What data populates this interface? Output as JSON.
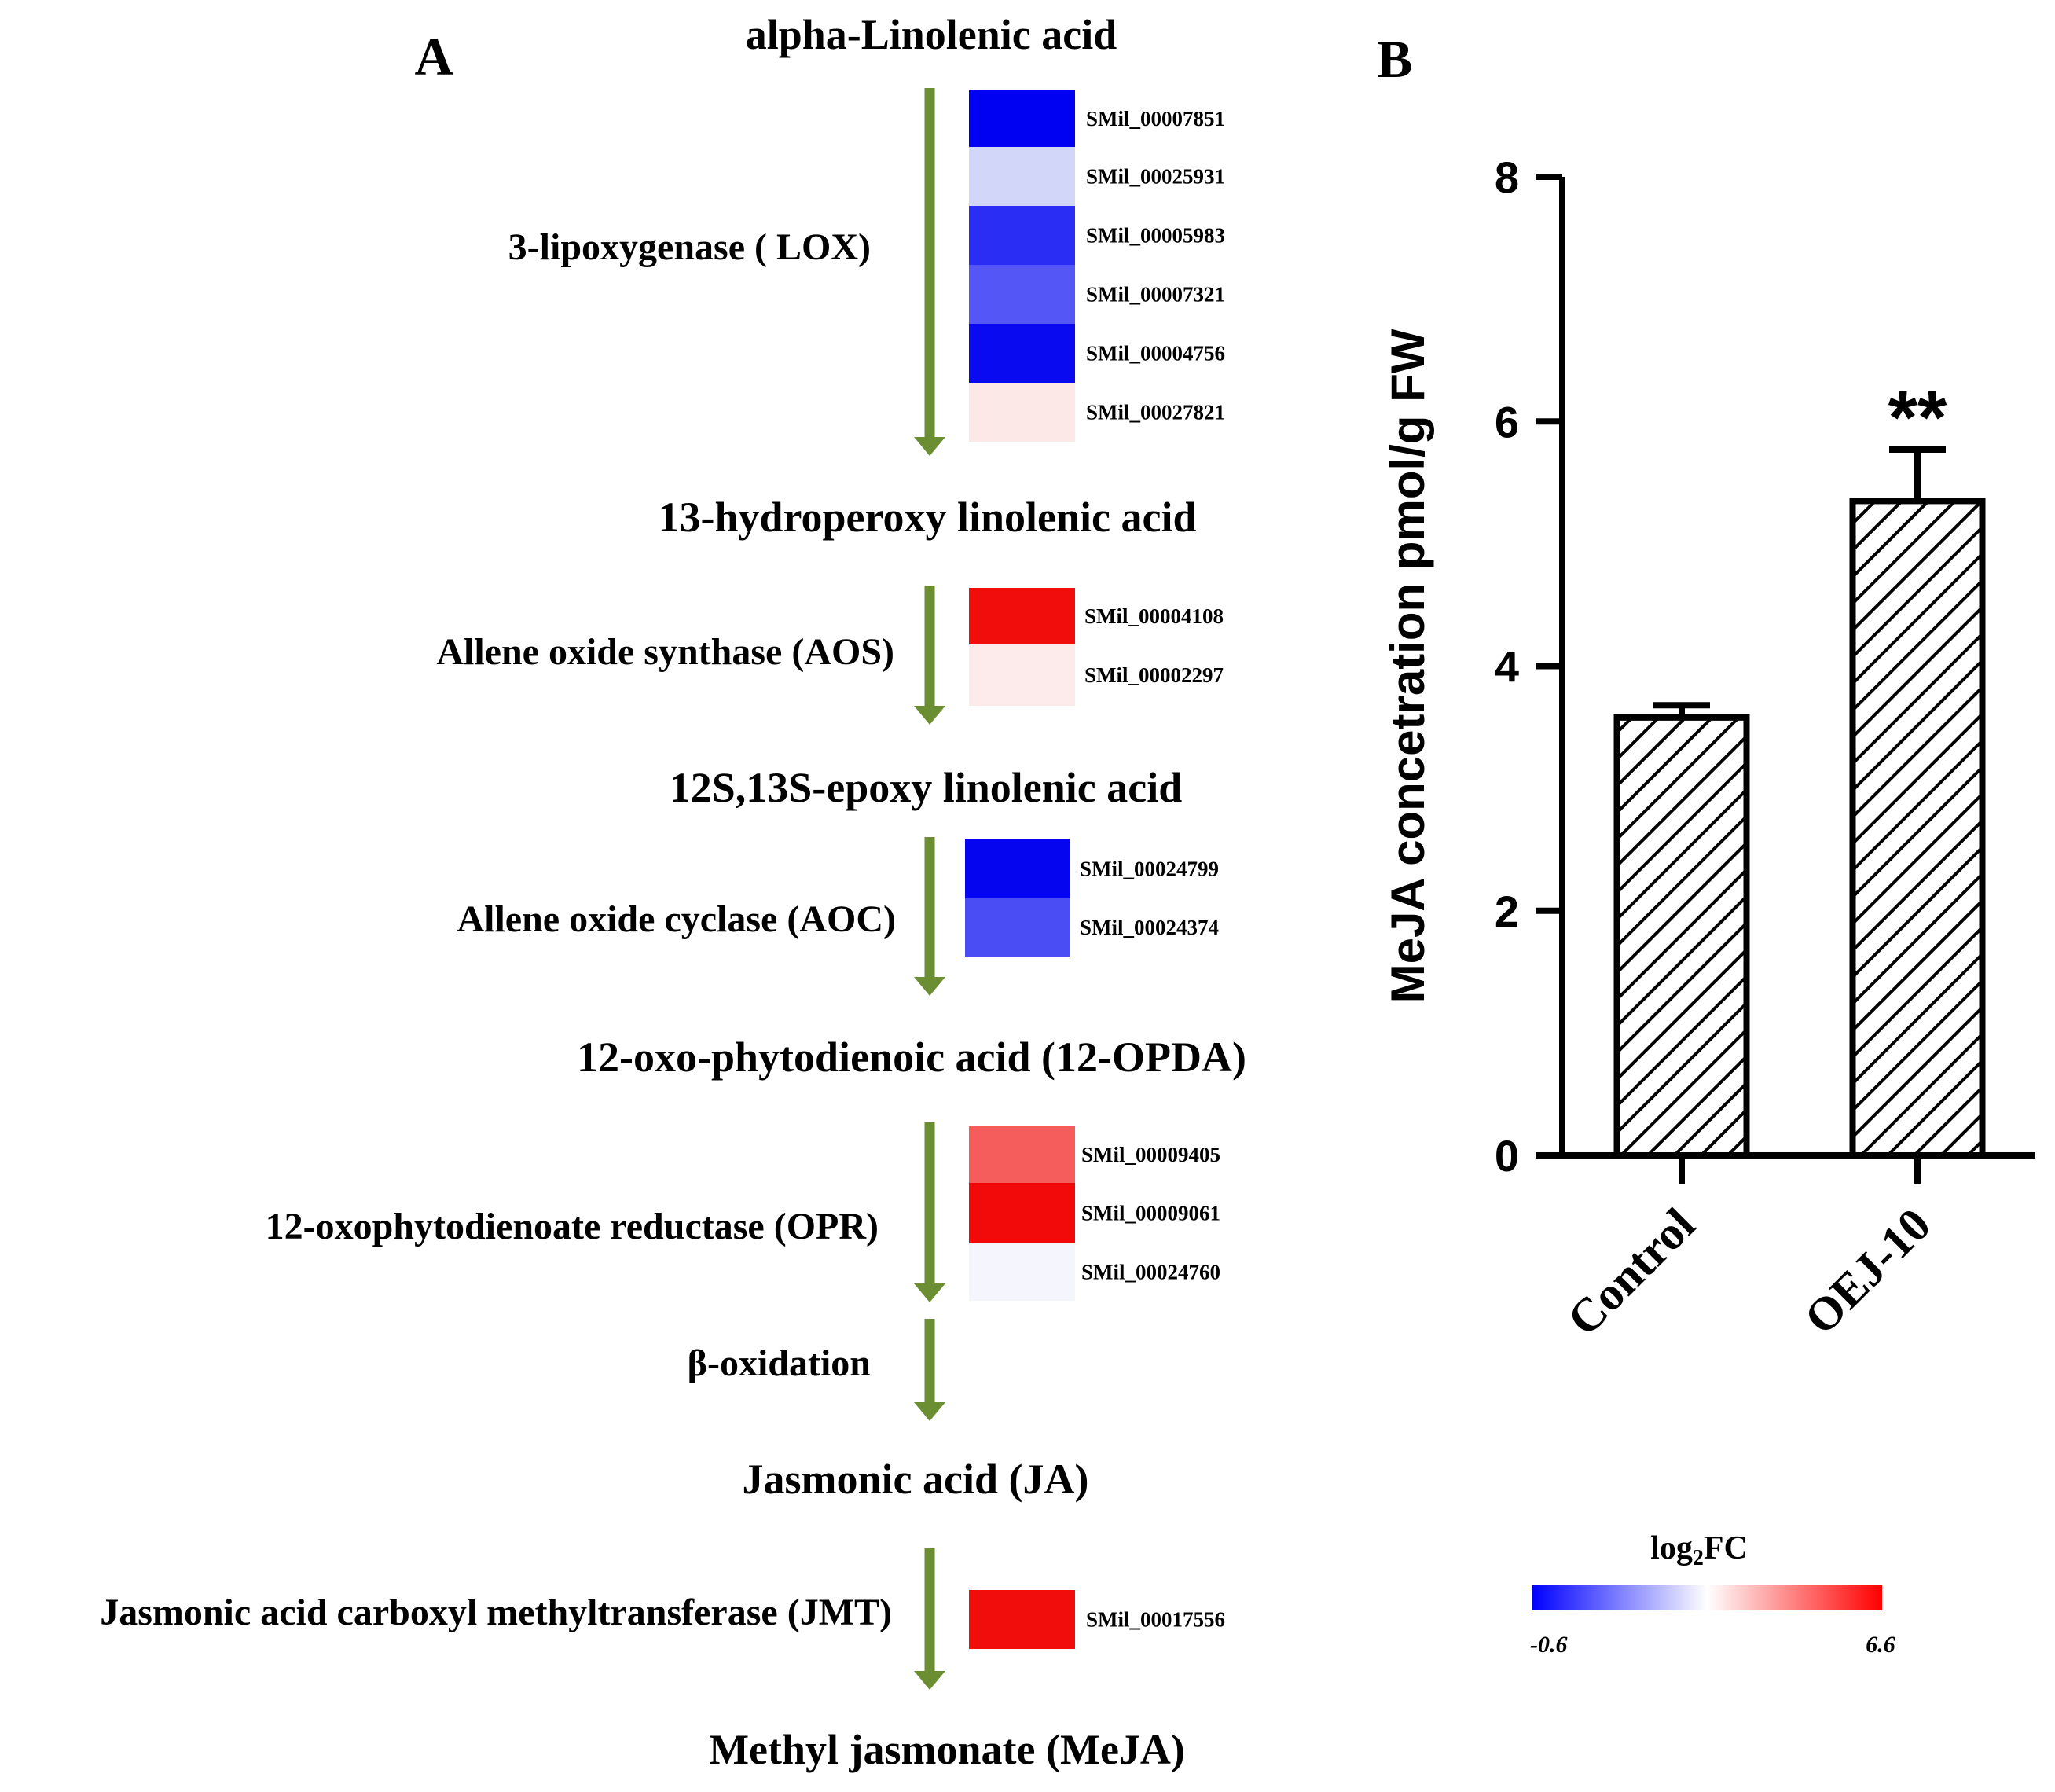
{
  "panel_a": {
    "label": "A",
    "metabolites": [
      "alpha-Linolenic acid",
      "13-hydroperoxy linolenic acid",
      "12S,13S-epoxy linolenic acid",
      "12-oxo-phytodienoic acid (12-OPDA)",
      "Jasmonic acid (JA)",
      "Methyl jasmonate (MeJA)"
    ],
    "enzymes": [
      {
        "name": "3-lipoxygenase ( LOX)",
        "genes": [
          {
            "id": "SMil_00007851",
            "color": "#0000F2"
          },
          {
            "id": "SMil_00025931",
            "color": "#D2D6F9"
          },
          {
            "id": "SMil_00005983",
            "color": "#2A2DF4"
          },
          {
            "id": "SMil_00007321",
            "color": "#5456F5"
          },
          {
            "id": "SMil_00004756",
            "color": "#0A0AF0"
          },
          {
            "id": "SMil_00027821",
            "color": "#FDE8E8"
          }
        ]
      },
      {
        "name": "Allene oxide synthase (AOS)",
        "genes": [
          {
            "id": "SMil_00004108",
            "color": "#F20D0D"
          },
          {
            "id": "SMil_00002297",
            "color": "#FDEAEA"
          }
        ]
      },
      {
        "name": "Allene oxide cyclase  (AOC)",
        "genes": [
          {
            "id": "SMil_00024799",
            "color": "#0505F0"
          },
          {
            "id": "SMil_00024374",
            "color": "#4A4CF4"
          }
        ]
      },
      {
        "name": "12-oxophytodienoate reductase  (OPR)",
        "genes": [
          {
            "id": "SMil_00009405",
            "color": "#F55C5C"
          },
          {
            "id": "SMil_00009061",
            "color": "#F20A0A"
          },
          {
            "id": "SMil_00024760",
            "color": "#F5F6FD"
          }
        ]
      },
      {
        "name": "β-oxidation",
        "genes": []
      },
      {
        "name": "Jasmonic acid carboxyl methyltransferase (JMT)",
        "genes": [
          {
            "id": "SMil_00017556",
            "color": "#F20D0D"
          }
        ]
      }
    ],
    "arrow_color": "#6B8E33",
    "legend": {
      "title": "log₂FC",
      "min_label": "-0.6",
      "max_label": "6.6",
      "colors": [
        "#0000FF",
        "#FFFFFF",
        "#FF0000"
      ]
    }
  },
  "chart_data": {
    "type": "bar",
    "panel_label": "B",
    "title": "",
    "xlabel": "",
    "ylabel": "MeJA concetration pmol/g FW",
    "ylim": [
      0,
      8
    ],
    "yticks": [
      "0",
      "2",
      "4",
      "6",
      "8"
    ],
    "categories": [
      "Control",
      "OEJ-10"
    ],
    "values": [
      3.58,
      5.35
    ],
    "errors": [
      0.1,
      0.42
    ],
    "annotations": [
      "",
      "**"
    ],
    "bar_pattern": "diagonal-hatch"
  }
}
